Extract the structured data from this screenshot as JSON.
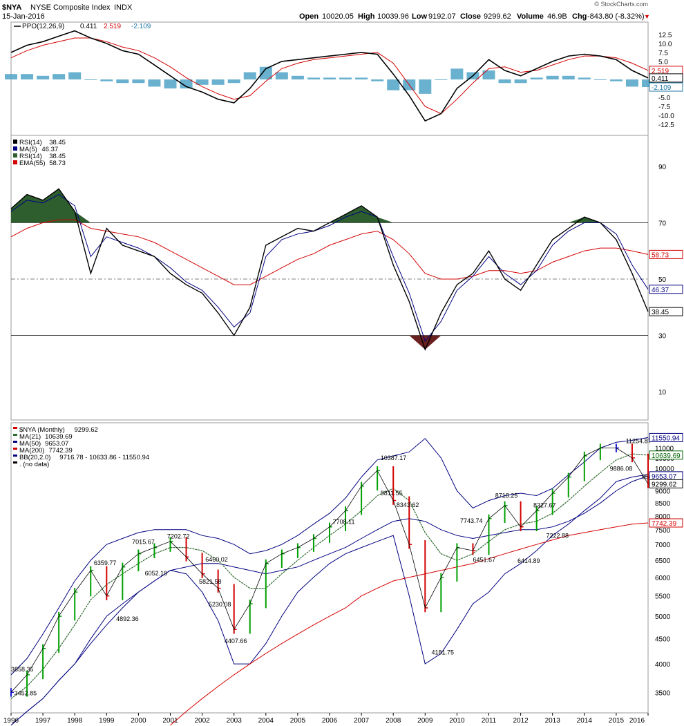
{
  "header": {
    "symbol": "$NYA",
    "name": "NYSE Composite Index",
    "exchange": "INDX",
    "date": "15-Jan-2016",
    "watermark": "© StockCharts.com",
    "quote": {
      "open_label": "Open",
      "open": "10020.05",
      "high_label": "High",
      "high": "10039.96",
      "low_label": "Low",
      "low": "9192.07",
      "close_label": "Close",
      "close": "9299.62",
      "volume_label": "Volume",
      "volume": "46.9B",
      "chg_label": "Chg",
      "chg": "-843.80 (-8.32%)",
      "arrow": "▼"
    }
  },
  "chart_data": [
    {
      "panel": "ppo",
      "type": "line",
      "legend": {
        "label": "PPO(12,26,9)",
        "v1": "0.411",
        "v2": "2.519",
        "v3": "-2.109"
      },
      "ylim": [
        -14,
        14
      ],
      "ticks": [
        12.5,
        10,
        7.5,
        5,
        2.5,
        0,
        -2.5,
        -5,
        -7.5,
        -10,
        -12.5
      ],
      "tick_labels": [
        "12.5",
        "10.0",
        "7.5",
        "5.0",
        "2.5",
        "0.0",
        "-2.5",
        "-5.0",
        "-7.5",
        "-10.0",
        "-12.5"
      ],
      "value_flags": [
        {
          "v": 2.519,
          "text": "2.519",
          "color": "#d40000"
        },
        {
          "v": 0.411,
          "text": "0.411",
          "color": "#000000"
        },
        {
          "v": -2.109,
          "text": "-2.109",
          "color": "#1f77a4"
        }
      ],
      "x": [
        1996.0,
        1996.5,
        1997.0,
        1997.5,
        1998.0,
        1998.5,
        1999.0,
        1999.5,
        2000.0,
        2000.5,
        2001.0,
        2001.5,
        2002.0,
        2002.5,
        2003.0,
        2003.5,
        2004.0,
        2004.5,
        2005.0,
        2005.5,
        2006.0,
        2006.5,
        2007.0,
        2007.5,
        2008.0,
        2008.5,
        2009.0,
        2009.5,
        2010.0,
        2010.5,
        2011.0,
        2011.5,
        2012.0,
        2012.5,
        2013.0,
        2013.5,
        2014.0,
        2014.5,
        2015.0,
        2015.5,
        2016.0
      ],
      "ppo": [
        7.5,
        9.5,
        10.5,
        12.0,
        13.5,
        11.5,
        10.0,
        8.0,
        7.0,
        4.0,
        1.0,
        -2.0,
        -3.5,
        -5.5,
        -6.5,
        -2.5,
        3.0,
        5.0,
        5.5,
        6.0,
        6.5,
        7.0,
        7.5,
        7.0,
        1.5,
        -4.5,
        -11.5,
        -9.5,
        -2.5,
        1.0,
        5.5,
        2.5,
        1.0,
        3.0,
        5.0,
        6.5,
        7.0,
        6.5,
        5.5,
        2.5,
        0.411
      ],
      "signal": [
        6.0,
        8.0,
        9.5,
        10.5,
        11.5,
        11.5,
        10.5,
        9.0,
        8.0,
        6.0,
        3.5,
        0.5,
        -2.0,
        -4.0,
        -5.5,
        -4.5,
        -0.5,
        3.0,
        4.5,
        5.5,
        6.0,
        6.5,
        7.0,
        7.5,
        4.5,
        -1.5,
        -7.5,
        -9.5,
        -5.5,
        -1.0,
        3.0,
        3.5,
        2.0,
        2.5,
        4.0,
        5.5,
        6.5,
        6.5,
        6.0,
        4.5,
        2.519
      ],
      "histogram": [
        -2.109
      ]
    },
    {
      "panel": "rsi",
      "type": "line",
      "legend": [
        {
          "label": "RSI(14)",
          "value": "38.45"
        },
        {
          "label": "MA(5)",
          "value": "46.37"
        },
        {
          "label": "RSI(14)",
          "value": "38.45"
        },
        {
          "label": "EMA(55)",
          "value": "58.73"
        }
      ],
      "ylim": [
        0,
        100
      ],
      "ticks": [
        90,
        70,
        50,
        30,
        10
      ],
      "value_flags": [
        {
          "v": 58.73,
          "text": "58.73",
          "color": "#d40000"
        },
        {
          "v": 46.37,
          "text": "46.37",
          "color": "#000080"
        },
        {
          "v": 38.45,
          "text": "38.45",
          "color": "#000000"
        }
      ],
      "x": [
        1996.0,
        1996.5,
        1997.0,
        1997.5,
        1998.0,
        1998.5,
        1999.0,
        1999.5,
        2000.0,
        2000.5,
        2001.0,
        2001.5,
        2002.0,
        2002.5,
        2003.0,
        2003.5,
        2004.0,
        2004.5,
        2005.0,
        2005.5,
        2006.0,
        2006.5,
        2007.0,
        2007.5,
        2008.0,
        2008.5,
        2009.0,
        2009.5,
        2010.0,
        2010.5,
        2011.0,
        2011.5,
        2012.0,
        2012.5,
        2013.0,
        2013.5,
        2014.0,
        2014.5,
        2015.0,
        2015.5,
        2016.0
      ],
      "rsi": [
        75,
        80,
        78,
        82,
        74,
        52,
        68,
        62,
        60,
        58,
        52,
        48,
        45,
        38,
        30,
        40,
        62,
        65,
        68,
        67,
        70,
        73,
        76,
        72,
        55,
        42,
        25,
        38,
        48,
        52,
        60,
        50,
        46,
        55,
        64,
        68,
        72,
        70,
        64,
        52,
        38.45
      ],
      "ma5": [
        74,
        78,
        77,
        80,
        76,
        58,
        65,
        63,
        61,
        58,
        54,
        49,
        46,
        40,
        33,
        38,
        58,
        64,
        66,
        67,
        69,
        72,
        74,
        72,
        58,
        45,
        28,
        35,
        46,
        51,
        58,
        52,
        48,
        53,
        62,
        67,
        70,
        70,
        66,
        55,
        46.37
      ],
      "ema55": [
        65,
        68,
        70,
        71,
        71,
        68,
        67,
        66,
        65,
        63,
        60,
        57,
        54,
        51,
        48,
        48,
        51,
        54,
        57,
        59,
        62,
        64,
        66,
        67,
        64,
        59,
        52,
        50,
        50,
        51,
        53,
        53,
        52,
        53,
        56,
        58,
        60,
        61,
        61,
        60,
        58.73
      ]
    },
    {
      "panel": "price",
      "type": "line",
      "legend": [
        {
          "label": "$NYA (Monthly)",
          "value": "9299.62"
        },
        {
          "label": "MA(21)",
          "value": "10639.69"
        },
        {
          "label": "MA(50)",
          "value": "9653.07"
        },
        {
          "label": "MA(200)",
          "value": "7742.39"
        },
        {
          "label": "BB(20,2.0)",
          "value": "9716.78 - 10633.86 - 11550.94"
        },
        {
          "label": ". (no data)",
          "value": ""
        }
      ],
      "ylim": [
        3200,
        12300
      ],
      "ticks": [
        11000,
        10500,
        10000,
        9500,
        9000,
        8500,
        8000,
        7500,
        7000,
        6500,
        6000,
        5500,
        5000,
        4500,
        4000,
        3500
      ],
      "value_flags": [
        {
          "v": 11550.94,
          "text": "11550.94",
          "color": "#000080"
        },
        {
          "v": 10639.69,
          "text": "10639.69",
          "color": "#006400"
        },
        {
          "v": 9653.07,
          "text": "9653.07",
          "color": "#000080"
        },
        {
          "v": 9299.62,
          "text": "9299.62",
          "color": "#000000"
        },
        {
          "v": 7742.39,
          "text": "7742.39",
          "color": "#d40000"
        }
      ],
      "x_ticks": [
        "1996",
        "1997",
        "1998",
        "1999",
        "2000",
        "2001",
        "2002",
        "2003",
        "2004",
        "2005",
        "2006",
        "2007",
        "2008",
        "2009",
        "2010",
        "2011",
        "2012",
        "2013",
        "2014",
        "2015",
        "2016"
      ],
      "x": [
        1996.0,
        1996.5,
        1997.0,
        1997.5,
        1998.0,
        1998.5,
        1999.0,
        1999.5,
        2000.0,
        2000.5,
        2001.0,
        2001.5,
        2002.0,
        2002.5,
        2003.0,
        2003.5,
        2004.0,
        2004.5,
        2005.0,
        2005.5,
        2006.0,
        2006.5,
        2007.0,
        2007.5,
        2008.0,
        2008.5,
        2009.0,
        2009.5,
        2010.0,
        2010.5,
        2011.0,
        2011.5,
        2012.0,
        2012.5,
        2013.0,
        2013.5,
        2014.0,
        2014.5,
        2015.0,
        2015.5,
        2016.0
      ],
      "close": [
        3500,
        3800,
        4300,
        5000,
        5600,
        6200,
        5500,
        6300,
        6700,
        6900,
        7100,
        6600,
        6100,
        5700,
        4700,
        5300,
        6400,
        6700,
        6900,
        7200,
        7600,
        8200,
        9200,
        9900,
        8600,
        7000,
        5200,
        6000,
        6900,
        6800,
        7900,
        8400,
        7600,
        8200,
        8900,
        9600,
        10600,
        11000,
        11000,
        10500,
        9299.62
      ],
      "ma21": [
        3400,
        3600,
        3900,
        4300,
        4800,
        5400,
        5800,
        6100,
        6400,
        6700,
        6900,
        6900,
        6800,
        6500,
        6000,
        5700,
        5700,
        6100,
        6500,
        6900,
        7300,
        7700,
        8200,
        8800,
        9100,
        8600,
        7400,
        6700,
        6500,
        6700,
        7100,
        7500,
        7700,
        7800,
        8100,
        8600,
        9200,
        9800,
        10400,
        10700,
        10639.69
      ],
      "ma50": [
        3000,
        3200,
        3400,
        3700,
        4000,
        4400,
        4800,
        5200,
        5600,
        5900,
        6200,
        6300,
        6400,
        6400,
        6300,
        6200,
        6100,
        6200,
        6300,
        6500,
        6700,
        6900,
        7200,
        7500,
        7800,
        7900,
        7800,
        7500,
        7300,
        7200,
        7300,
        7400,
        7500,
        7500,
        7600,
        7800,
        8100,
        8500,
        9000,
        9400,
        9653.07
      ],
      "ma200": [
        null,
        null,
        null,
        null,
        null,
        null,
        null,
        null,
        null,
        null,
        3000,
        3200,
        3400,
        3600,
        3800,
        4000,
        4200,
        4400,
        4600,
        4800,
        5000,
        5200,
        5500,
        5700,
        5900,
        6000,
        6100,
        6200,
        6300,
        6400,
        6550,
        6700,
        6850,
        7000,
        7150,
        7300,
        7400,
        7500,
        7600,
        7700,
        7742.39
      ],
      "bb_upper": [
        3800,
        4100,
        4600,
        5200,
        5900,
        6500,
        7000,
        7200,
        7400,
        7500,
        7500,
        7500,
        7300,
        7200,
        7000,
        6700,
        6800,
        7000,
        7300,
        7700,
        8100,
        8700,
        9600,
        10400,
        10600,
        10800,
        11500,
        10500,
        9000,
        8300,
        8600,
        8800,
        8900,
        8800,
        9100,
        9700,
        10300,
        11000,
        11300,
        11400,
        11550.94
      ],
      "bb_lower": [
        3000,
        3200,
        3400,
        3700,
        4000,
        4500,
        5000,
        5300,
        5600,
        5900,
        6200,
        6100,
        5600,
        4900,
        4000,
        4000,
        4400,
        5000,
        5600,
        6000,
        6400,
        6700,
        6900,
        7100,
        7300,
        5500,
        4000,
        4200,
        4700,
        5300,
        5600,
        6100,
        6400,
        6800,
        7300,
        7700,
        8200,
        8700,
        9400,
        9600,
        9716.78
      ],
      "annotations": [
        {
          "x": 1996.0,
          "y": 3858.35,
          "text": "3858.35"
        },
        {
          "x": 1996.1,
          "y": 3452.85,
          "text": "3452.85"
        },
        {
          "x": 1998.6,
          "y": 6359.77,
          "text": "6359.77"
        },
        {
          "x": 1999.3,
          "y": 4892.36,
          "text": "4892.36"
        },
        {
          "x": 1999.8,
          "y": 7015.67,
          "text": "7015.67"
        },
        {
          "x": 2000.2,
          "y": 6052.19,
          "text": "6052.19"
        },
        {
          "x": 2000.9,
          "y": 7202.72,
          "text": "7202.72"
        },
        {
          "x": 2001.9,
          "y": 5821.58,
          "text": "5821.58"
        },
        {
          "x": 2002.1,
          "y": 6460.02,
          "text": "6460.02"
        },
        {
          "x": 2002.2,
          "y": 5230.08,
          "text": "5230.08"
        },
        {
          "x": 2002.7,
          "y": 4407.66,
          "text": "4407.66"
        },
        {
          "x": 2006.1,
          "y": 7708.11,
          "text": "7708.11"
        },
        {
          "x": 2007.6,
          "y": 10387.17,
          "text": "10387.17"
        },
        {
          "x": 2007.6,
          "y": 8811.55,
          "text": "8811.55"
        },
        {
          "x": 2008.1,
          "y": 8343.62,
          "text": "8343.62"
        },
        {
          "x": 2009.2,
          "y": 4181.75,
          "text": "4181.75"
        },
        {
          "x": 2010.1,
          "y": 7743.74,
          "text": "7743.74"
        },
        {
          "x": 2010.5,
          "y": 6451.67,
          "text": "6451.67"
        },
        {
          "x": 2011.2,
          "y": 8718.25,
          "text": "8718.25"
        },
        {
          "x": 2011.9,
          "y": 6414.89,
          "text": "6414.89"
        },
        {
          "x": 2012.4,
          "y": 8327.67,
          "text": "8327.67"
        },
        {
          "x": 2012.8,
          "y": 7222.88,
          "text": "7222.88"
        },
        {
          "x": 2014.8,
          "y": 9886.08,
          "text": "9886.08"
        },
        {
          "x": 2015.3,
          "y": 11254.87,
          "text": "11254.87"
        },
        {
          "x": 2015.8,
          "y": 9509.59,
          "text": "9509.59"
        }
      ]
    }
  ],
  "colors": {
    "price_line": "#000000",
    "ppo_line": "#000000",
    "signal_line": "#d40000",
    "histogram": "#4fa3c7",
    "rsi_line": "#000000",
    "ma5_line": "#000080",
    "ema55_line": "#d40000",
    "overbought_fill": "#2e5e2e",
    "oversold_fill": "#6b2020",
    "ma21": "#2e6b2e",
    "ma50": "#000080",
    "ma200": "#d40000",
    "bb": "#000080",
    "bar_up": "#00a000",
    "bar_down": "#d40000",
    "bar_flat": "#1a1ad4"
  }
}
